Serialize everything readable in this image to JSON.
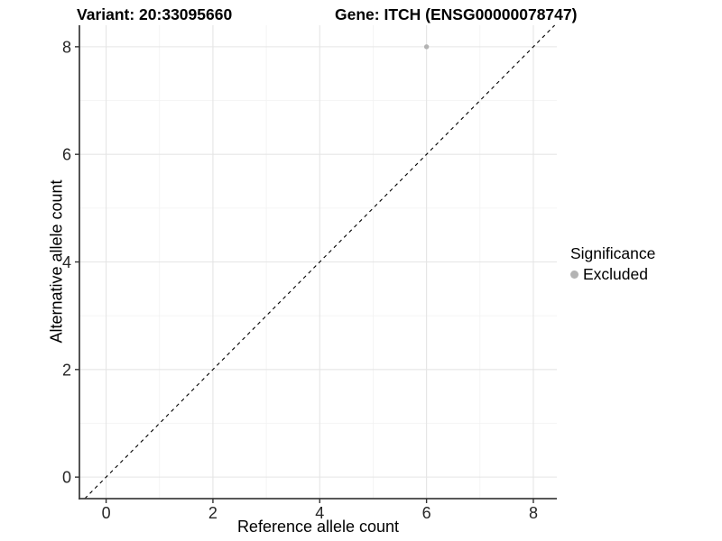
{
  "titles": {
    "variant": "Variant: 20:33095660",
    "gene": "Gene: ITCH (ENSG00000078747)"
  },
  "chart_data": {
    "type": "scatter",
    "title_left": "Variant: 20:33095660",
    "title_right": "Gene: ITCH (ENSG00000078747)",
    "xlabel": "Reference allele count",
    "ylabel": "Alternative allele count",
    "xlim": [
      -0.5,
      8.44
    ],
    "ylim": [
      -0.4,
      8.4
    ],
    "x_ticks": [
      0,
      2,
      4,
      6,
      8
    ],
    "y_ticks": [
      0,
      2,
      4,
      6,
      8
    ],
    "x_minor_ticks": [
      1,
      3,
      5,
      7
    ],
    "y_minor_ticks": [
      1,
      3,
      5,
      7
    ],
    "grid": true,
    "points": [
      {
        "x": 6,
        "y": 8,
        "significance": "Excluded"
      }
    ],
    "reference_line": {
      "slope": 1,
      "intercept": 0,
      "style": "dashed",
      "color": "#000000"
    },
    "legend": {
      "position": "right",
      "title": "Significance",
      "entries": [
        {
          "label": "Excluded",
          "color": "#b3b3b3"
        }
      ]
    },
    "colors": {
      "point": "#b3b3b3",
      "grid_major": "#e5e5e5",
      "grid_minor": "#f2f2f2",
      "axis_line": "#404040",
      "tick_mark": "#333333",
      "tick_label": "#262626"
    }
  }
}
